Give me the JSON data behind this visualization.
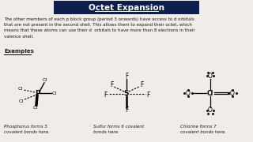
{
  "title": "Octet Expansion",
  "title_bg": "#0d1f4e",
  "title_color": "#ffffff",
  "body_text": "The other members of each p block group (period 3 onwards) have access to d orbitals\nthat are not present in the second shell. This allows them to expand their octet, which\nmeans that these atoms can use their d  orbitals to have more than 8 electrons in their\nvalence shell.",
  "examples_label": "Examples",
  "caption1": "Phosphorus forms 5\ncovalent bonds here.",
  "caption2": "Sulfur forms 6 covalent\nbonds here.",
  "caption3": "Chlorine forms 7\ncovalent bonds here.",
  "bg_color": "#f0ede8",
  "text_color": "#1a1a1a"
}
